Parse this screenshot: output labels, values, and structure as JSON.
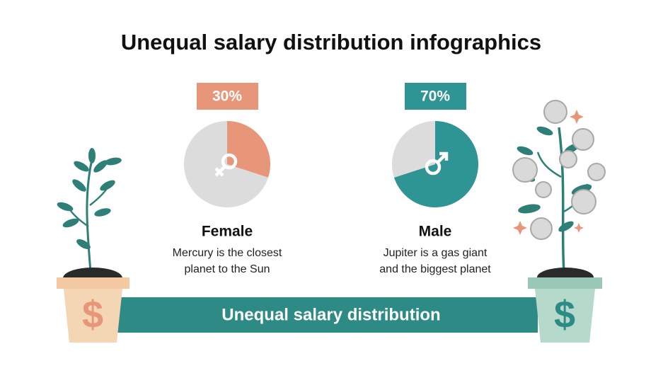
{
  "title": "Unequal salary distribution infographics",
  "banner": "Unequal salary distribution",
  "chart_data": [
    {
      "type": "pie",
      "categories": [
        "Female",
        null
      ],
      "values": [
        30,
        70
      ],
      "value_labels": [
        "30%",
        null
      ],
      "colors": [
        "#e8967a",
        "#dcdcdc"
      ],
      "symbol": "female",
      "description": [
        "Mercury is the closest",
        "planet to the Sun"
      ]
    },
    {
      "type": "pie",
      "categories": [
        "Male",
        null
      ],
      "values": [
        70,
        30
      ],
      "value_labels": [
        "70%",
        null
      ],
      "colors": [
        "#2e9494",
        "#dcdcdc"
      ],
      "symbol": "male",
      "description": [
        "Jupiter is a gas giant",
        "and the biggest planet"
      ]
    }
  ]
}
